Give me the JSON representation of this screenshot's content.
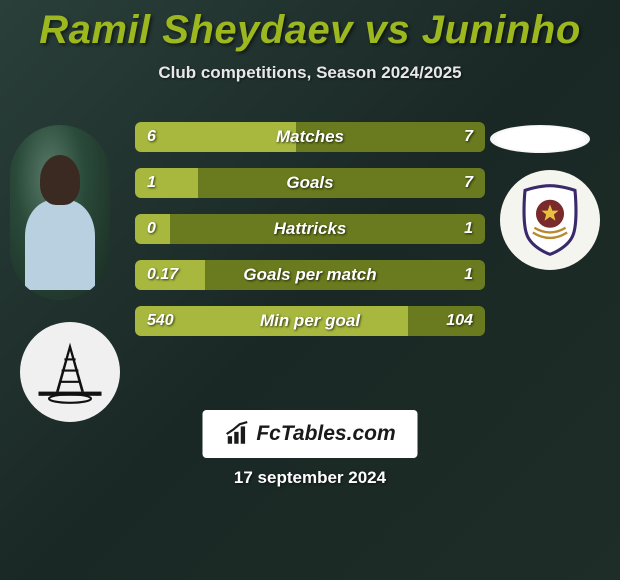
{
  "title": "Ramil Sheydaev vs Juninho",
  "subtitle": "Club competitions, Season 2024/2025",
  "date": "17 september 2024",
  "footer_brand": "FcTables.com",
  "colors": {
    "accent": "#9db81e",
    "bar_left": "#a8b83e",
    "bar_right": "#6a7a1e",
    "text_light": "#ffffff",
    "badge_bg": "#ffffff"
  },
  "stats": [
    {
      "label": "Matches",
      "left_val": "6",
      "right_val": "7",
      "left_pct": 46,
      "right_pct": 54
    },
    {
      "label": "Goals",
      "left_val": "1",
      "right_val": "7",
      "left_pct": 18,
      "right_pct": 82
    },
    {
      "label": "Hattricks",
      "left_val": "0",
      "right_val": "1",
      "left_pct": 10,
      "right_pct": 90
    },
    {
      "label": "Goals per match",
      "left_val": "0.17",
      "right_val": "1",
      "left_pct": 20,
      "right_pct": 80
    },
    {
      "label": "Min per goal",
      "left_val": "540",
      "right_val": "104",
      "left_pct": 78,
      "right_pct": 22
    }
  ]
}
